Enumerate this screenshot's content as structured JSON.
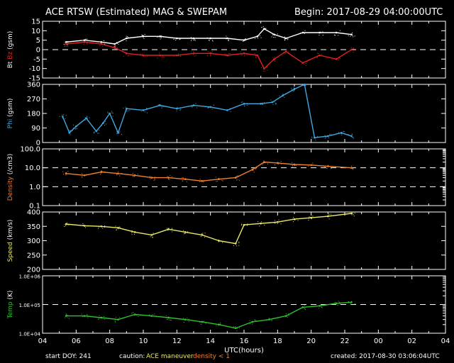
{
  "header": {
    "title": "ACE RTSW (Estimated) MAG & SWEPAM",
    "begin": "Begin: 2017-08-29 04:00:00UTC"
  },
  "footer": {
    "start_doy": "start DOY: 241",
    "caution_label": "caution:",
    "caution_maneuver": "ACE maneuver",
    "caution_density": "density < 1",
    "created": "created: 2017-08-30 03:06:04UTC"
  },
  "colors": {
    "bt": "#ffffff",
    "bz": "#e02020",
    "phi": "#40a8e0",
    "density": "#f08030",
    "speed": "#e8e870",
    "temp": "#30c030",
    "caution_maneuver": "#e8e870",
    "caution_density": "#f08030"
  },
  "chart_data": {
    "type": "line",
    "x_axis": {
      "label": "UTC(hours)",
      "ticks": [
        "04",
        "06",
        "08",
        "10",
        "12",
        "14",
        "16",
        "18",
        "20",
        "22",
        "00",
        "02",
        "04"
      ],
      "range_hours": [
        4,
        28
      ]
    },
    "panels": [
      {
        "name": "mag",
        "ylabel_parts": [
          "Bt",
          "Bz",
          "(gsm)"
        ],
        "ylim": [
          -15,
          15
        ],
        "ticks": [
          "-15",
          "-10",
          "-5",
          "0",
          "5",
          "10",
          "15"
        ],
        "tick_values": [
          -15,
          -10,
          -5,
          0,
          5,
          10,
          15
        ],
        "dashed": [
          0
        ],
        "series": [
          {
            "name": "Bt",
            "color_key": "bt",
            "x": [
              5.4,
              6.5,
              7.5,
              8.3,
              9.0,
              10.0,
              11.0,
              12.0,
              13.0,
              14.0,
              15.0,
              16.0,
              16.8,
              17.2,
              17.8,
              18.5,
              19.5,
              20.5,
              21.5,
              22.4
            ],
            "y": [
              4,
              5,
              4,
              3,
              6,
              7,
              7,
              6,
              6,
              6,
              6,
              5,
              7,
              11,
              8,
              6,
              9,
              9,
              9,
              8
            ]
          },
          {
            "name": "Bz",
            "color_key": "bz",
            "x": [
              5.4,
              6.5,
              7.5,
              8.3,
              9.0,
              10.0,
              11.0,
              12.0,
              13.0,
              14.0,
              15.0,
              16.0,
              16.8,
              17.2,
              17.8,
              18.5,
              19.5,
              20.5,
              21.5,
              22.4
            ],
            "y": [
              3,
              4,
              3,
              1,
              -2,
              -3,
              -3,
              -3,
              -2,
              -2,
              -3,
              -2,
              -3,
              -10,
              -5,
              -1,
              -7,
              -3,
              -5,
              0
            ]
          }
        ]
      },
      {
        "name": "phi",
        "ylabel_parts": [
          "Phi",
          "(gsm)"
        ],
        "ylim": [
          0,
          360
        ],
        "ticks": [
          "0",
          "90",
          "180",
          "270",
          "360"
        ],
        "tick_values": [
          0,
          90,
          180,
          270,
          360
        ],
        "dashed": [],
        "series": [
          {
            "name": "Phi",
            "color_key": "phi",
            "x": [
              5.2,
              5.6,
              6.0,
              6.6,
              7.2,
              7.6,
              8.0,
              8.5,
              9.0,
              10.0,
              11.0,
              12.0,
              13.0,
              14.0,
              15.0,
              16.0,
              17.0,
              17.7,
              18.3,
              19.0,
              19.6,
              20.2,
              21.0,
              21.8,
              22.4
            ],
            "y": [
              160,
              60,
              100,
              150,
              70,
              120,
              180,
              60,
              210,
              200,
              230,
              210,
              230,
              220,
              200,
              240,
              240,
              250,
              290,
              330,
              360,
              30,
              40,
              60,
              40
            ]
          }
        ]
      },
      {
        "name": "density",
        "ylabel_parts": [
          "Density",
          "(/cm3)"
        ],
        "log": true,
        "ylim": [
          0.1,
          100
        ],
        "ticks": [
          "0.1",
          "1.0",
          "10.0",
          "100.0"
        ],
        "tick_values": [
          0.1,
          1,
          10,
          100
        ],
        "dashed": [
          1,
          10
        ],
        "series": [
          {
            "name": "Density",
            "color_key": "density",
            "x": [
              5.4,
              6.5,
              7.5,
              8.5,
              9.5,
              10.5,
              11.5,
              12.5,
              13.5,
              14.5,
              15.5,
              16.5,
              17.2,
              18.0,
              19.0,
              20.0,
              21.0,
              22.4
            ],
            "y": [
              5,
              4,
              6,
              5,
              4,
              3,
              3,
              2.5,
              2,
              2.5,
              3,
              8,
              20,
              18,
              15,
              14,
              12,
              10
            ]
          }
        ]
      },
      {
        "name": "speed",
        "ylabel_parts": [
          "Speed",
          "(km/s)"
        ],
        "ylim": [
          200,
          400
        ],
        "ticks": [
          "200",
          "250",
          "300",
          "350",
          "400"
        ],
        "tick_values": [
          200,
          250,
          300,
          350,
          400
        ],
        "dashed": [],
        "series": [
          {
            "name": "Speed",
            "color_key": "speed",
            "x": [
              5.4,
              6.5,
              7.5,
              8.5,
              9.5,
              10.5,
              11.5,
              12.5,
              13.5,
              14.5,
              15.5,
              16.0,
              17.0,
              18.0,
              19.0,
              20.0,
              21.0,
              22.4
            ],
            "y": [
              358,
              352,
              350,
              345,
              330,
              320,
              340,
              330,
              320,
              300,
              290,
              355,
              360,
              365,
              375,
              380,
              385,
              395
            ]
          }
        ]
      },
      {
        "name": "temp",
        "ylabel_parts": [
          "Temp",
          "(K)"
        ],
        "log": true,
        "ylim": [
          10000,
          1000000
        ],
        "ticks": [
          "1.0E+04",
          "1.0E+05",
          "1.0E+06"
        ],
        "tick_values": [
          10000,
          100000,
          1000000
        ],
        "dashed": [
          100000
        ],
        "series": [
          {
            "name": "Temp",
            "color_key": "temp",
            "x": [
              5.4,
              6.5,
              7.5,
              8.5,
              9.5,
              10.5,
              11.5,
              12.5,
              13.5,
              14.5,
              15.5,
              16.5,
              17.5,
              18.5,
              19.5,
              20.5,
              21.5,
              22.4
            ],
            "y": [
              40000,
              40000,
              35000,
              30000,
              45000,
              40000,
              35000,
              30000,
              25000,
              20000,
              15000,
              25000,
              30000,
              40000,
              80000,
              90000,
              110000,
              120000
            ]
          }
        ]
      }
    ]
  }
}
